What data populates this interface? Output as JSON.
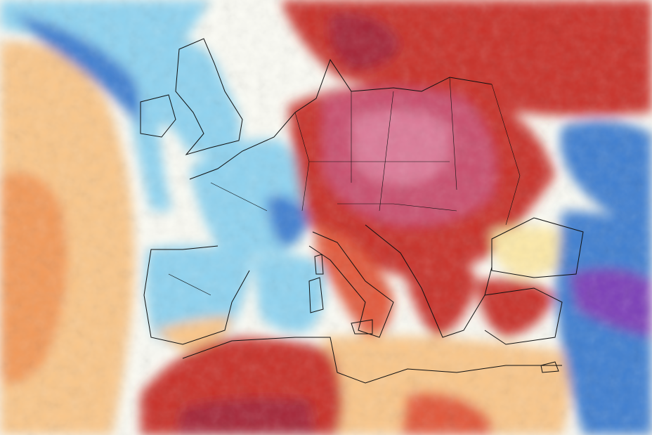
{
  "map": {
    "palette": {
      "deep_purple": "#7b3fb8",
      "blue": "#3f7fd0",
      "light_blue": "#8fd3f0",
      "cyan": "#b8ecf5",
      "white": "#fbfbf4",
      "pale_yellow": "#fde9a8",
      "light_orange": "#f9c68a",
      "orange": "#f29a5a",
      "red_orange": "#e2583a",
      "red": "#c8302a",
      "dark_red": "#a52838",
      "magenta": "#c9506e",
      "pink": "#dc7a98",
      "border": "#111111"
    }
  }
}
